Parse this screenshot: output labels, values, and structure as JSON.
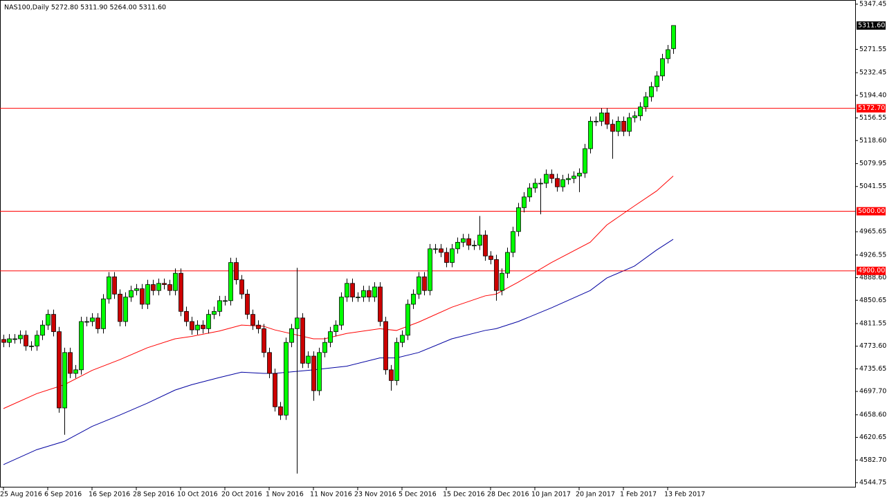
{
  "chart_data": {
    "type": "candlestick",
    "title": "NAS100,Daily  5272.80 5311.90 5264.00 5311.60",
    "categories": [
      "25 Aug 2016",
      null,
      null,
      null,
      null,
      null,
      null,
      null,
      "6 Sep 2016",
      null,
      null,
      null,
      null,
      null,
      null,
      null,
      "16 Sep 2016",
      null,
      null,
      null,
      null,
      null,
      null,
      null,
      "28 Sep 2016",
      null,
      null,
      null,
      null,
      null,
      null,
      null,
      "10 Oct 2016",
      null,
      null,
      null,
      null,
      null,
      null,
      null,
      "20 Oct 2016",
      null,
      null,
      null,
      null,
      null,
      null,
      null,
      "1 Nov 2016",
      null,
      null,
      null,
      null,
      null,
      null,
      null,
      "11 Nov 2016",
      null,
      null,
      null,
      null,
      null,
      null,
      null,
      "23 Nov 2016",
      null,
      null,
      null,
      null,
      null,
      null,
      null,
      "5 Dec 2016",
      null,
      null,
      null,
      null,
      null,
      null,
      null,
      "15 Dec 2016",
      null,
      null,
      null,
      null,
      null,
      null,
      null,
      "28 Dec 2016",
      null,
      null,
      null,
      null,
      null,
      null,
      null,
      "10 Jan 2017",
      null,
      null,
      null,
      null,
      null,
      null,
      null,
      "20 Jan 2017",
      null,
      null,
      null,
      null,
      null,
      null,
      null,
      "1 Feb 2017",
      null,
      null,
      null,
      null,
      null,
      null,
      null,
      "13 Feb 2017",
      null
    ],
    "open": [
      4785,
      4780,
      4786,
      4786,
      4792,
      4774,
      4774,
      4792,
      4809,
      4827,
      4798,
      4670,
      4763,
      4728,
      4734,
      4815,
      4815,
      4821,
      4803,
      4853,
      4890,
      4861,
      4815,
      4856,
      4867,
      4870,
      4844,
      4877,
      4867,
      4879,
      4877,
      4867,
      4896,
      4832,
      4815,
      4801,
      4809,
      4803,
      4827,
      4832,
      4850,
      4850,
      4914,
      4885,
      4861,
      4827,
      4809,
      4803,
      4763,
      4728,
      4672,
      4658,
      4780,
      4803,
      4821,
      4745,
      4757,
      4699,
      4763,
      4780,
      4798,
      4809,
      4856,
      4879,
      4856,
      4856,
      4867,
      4856,
      4873,
      4815,
      4734,
      4716,
      4780,
      4792,
      4844,
      4861,
      4890,
      4867,
      4937,
      4937,
      4931,
      4914,
      4937,
      4948,
      4954,
      4943,
      4943,
      4960,
      4925,
      4919,
      4867,
      4896,
      4931,
      4966,
      5006,
      5024,
      5039,
      5047,
      5047,
      5062,
      5055,
      5041,
      5053,
      5055,
      5059,
      5064,
      5105,
      5151,
      5151,
      5165,
      5146,
      5134,
      5151,
      5134,
      5157,
      5160,
      5175,
      5192,
      5209,
      5227,
      5256,
      5272.8
    ],
    "high": [
      4793,
      4794,
      4794,
      4800,
      4800,
      4782,
      4800,
      4817,
      4835,
      4835,
      4806,
      4771,
      4771,
      4742,
      4823,
      4823,
      4829,
      4829,
      4861,
      4898,
      4898,
      4869,
      4864,
      4875,
      4878,
      4878,
      4885,
      4885,
      4887,
      4887,
      4885,
      4904,
      4904,
      4840,
      4823,
      4817,
      4817,
      4835,
      4840,
      4858,
      4858,
      4922,
      4922,
      4893,
      4869,
      4835,
      4817,
      4811,
      4771,
      4736,
      4680,
      4788,
      4811,
      4905,
      4829,
      4765,
      4765,
      4771,
      4788,
      4806,
      4817,
      4864,
      4887,
      4887,
      4864,
      4875,
      4875,
      4881,
      4881,
      4823,
      4742,
      4788,
      4800,
      4852,
      4869,
      4898,
      4898,
      4945,
      4945,
      4945,
      4939,
      4945,
      4956,
      4962,
      4962,
      4951,
      4992,
      4968,
      4933,
      4927,
      4904,
      4939,
      4974,
      5014,
      5032,
      5047,
      5055,
      5055,
      5070,
      5070,
      5063,
      5061,
      5063,
      5067,
      5072,
      5113,
      5159,
      5159,
      5173,
      5173,
      5154,
      5159,
      5159,
      5165,
      5168,
      5183,
      5200,
      5217,
      5235,
      5264,
      5279,
      5311.9
    ],
    "low": [
      4772,
      4772,
      4778,
      4778,
      4766,
      4766,
      4766,
      4784,
      4801,
      4790,
      4662,
      4625,
      4720,
      4720,
      4726,
      4807,
      4807,
      4795,
      4795,
      4845,
      4853,
      4807,
      4807,
      4848,
      4859,
      4836,
      4836,
      4859,
      4859,
      4869,
      4859,
      4859,
      4824,
      4807,
      4793,
      4793,
      4795,
      4795,
      4819,
      4824,
      4842,
      4842,
      4877,
      4853,
      4819,
      4801,
      4795,
      4755,
      4720,
      4664,
      4650,
      4650,
      4772,
      4560,
      4737,
      4737,
      4682,
      4691,
      4755,
      4772,
      4790,
      4801,
      4848,
      4848,
      4848,
      4848,
      4848,
      4848,
      4807,
      4726,
      4699,
      4708,
      4772,
      4784,
      4836,
      4853,
      4859,
      4859,
      4929,
      4923,
      4906,
      4906,
      4929,
      4940,
      4935,
      4935,
      4935,
      4917,
      4911,
      4850,
      4859,
      4888,
      4923,
      4958,
      4998,
      5016,
      5031,
      4995,
      5039,
      5047,
      5033,
      5033,
      5045,
      5047,
      5032,
      5056,
      5097,
      5143,
      5143,
      5138,
      5088,
      5126,
      5126,
      5126,
      5149,
      5152,
      5167,
      5184,
      5201,
      5219,
      5248,
      5264
    ],
    "close": [
      4780,
      4786,
      4786,
      4792,
      4774,
      4774,
      4792,
      4809,
      4827,
      4798,
      4670,
      4763,
      4728,
      4734,
      4815,
      4815,
      4821,
      4803,
      4853,
      4890,
      4861,
      4815,
      4856,
      4867,
      4870,
      4844,
      4877,
      4867,
      4879,
      4877,
      4867,
      4896,
      4832,
      4815,
      4801,
      4809,
      4803,
      4827,
      4832,
      4850,
      4850,
      4914,
      4885,
      4861,
      4827,
      4809,
      4803,
      4763,
      4728,
      4672,
      4658,
      4780,
      4803,
      4821,
      4745,
      4757,
      4699,
      4763,
      4780,
      4798,
      4809,
      4856,
      4879,
      4856,
      4856,
      4867,
      4856,
      4873,
      4815,
      4734,
      4716,
      4780,
      4792,
      4844,
      4861,
      4890,
      4867,
      4937,
      4937,
      4931,
      4914,
      4937,
      4948,
      4954,
      4943,
      4943,
      4960,
      4925,
      4919,
      4867,
      4896,
      4931,
      4966,
      5006,
      5024,
      5039,
      5047,
      5047,
      5062,
      5055,
      5041,
      5053,
      5055,
      5059,
      5064,
      5105,
      5151,
      5151,
      5165,
      5146,
      5134,
      5151,
      5134,
      5157,
      5160,
      5175,
      5192,
      5209,
      5227,
      5256,
      5271,
      5311.6
    ],
    "up_color": "#00ff00",
    "down_color": "#cc0000",
    "indicators": [
      {
        "color": "#ff0000",
        "x": [
          0,
          6,
          11,
          16,
          21,
          26,
          31,
          34,
          39,
          43,
          47,
          49,
          56,
          58,
          62,
          68,
          71,
          75,
          81,
          87,
          89,
          93,
          99,
          106,
          109,
          114,
          118,
          121
        ],
        "values": [
          4669,
          4694,
          4709,
          4733,
          4751,
          4771,
          4786,
          4790,
          4799,
          4809,
          4807,
          4801,
          4786,
          4786,
          4795,
          4803,
          4800,
          4814,
          4839,
          4858,
          4861,
          4881,
          4914,
          4948,
          4977,
          5009,
          5034,
          5059
        ]
      },
      {
        "color": "#0000a0",
        "x": [
          0,
          6,
          11,
          16,
          21,
          26,
          31,
          34,
          39,
          43,
          47,
          49,
          56,
          58,
          62,
          68,
          71,
          75,
          81,
          87,
          89,
          93,
          99,
          106,
          109,
          114,
          118,
          121
        ],
        "values": [
          4575,
          4600,
          4614,
          4639,
          4658,
          4678,
          4700,
          4709,
          4721,
          4730,
          4728,
          4728,
          4734,
          4736,
          4740,
          4754,
          4754,
          4763,
          4786,
          4800,
          4803,
          4815,
          4838,
          4867,
          4888,
          4908,
          4935,
          4953
        ]
      }
    ],
    "hlines": [
      {
        "value": 5172.7,
        "label": "5172.70",
        "color": "#ff0000"
      },
      {
        "value": 5000,
        "label": "5000.00",
        "color": "#ff0000"
      },
      {
        "value": 4900,
        "label": "4900.00",
        "color": "#ff0000"
      }
    ],
    "last_price": {
      "value": 5311.6,
      "label": "5311.60"
    },
    "ylim": [
      4536.6,
      5354.4
    ],
    "yticks": [
      5347.45,
      5271.55,
      5232.45,
      {
        "value": 5194.4,
        "label": "5194.40"
      },
      5156.55,
      {
        "value": 5118.6,
        "label": "5118.60"
      },
      5079.95,
      5041.55,
      4965.65,
      4926.55,
      {
        "value": 4888.6,
        "label": "4888.60"
      },
      4850.65,
      4811.55,
      {
        "value": 4773.6,
        "label": "4773.60"
      },
      4735.65,
      {
        "value": 4697.7,
        "label": "4697.70"
      },
      {
        "value": 4658.6,
        "label": "4658.60"
      },
      4620.65,
      {
        "value": 4582.7,
        "label": "4582.70"
      },
      4544.75
    ]
  }
}
